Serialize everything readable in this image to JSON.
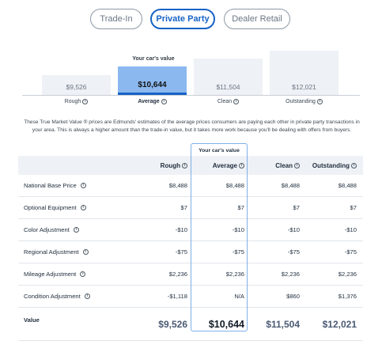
{
  "tabs": [
    "Trade-In",
    "Private Party",
    "Dealer Retail"
  ],
  "active_tab": "Private Party",
  "your_value_label": "Your car's value",
  "chart": {
    "conditions": [
      "Rough",
      "Average",
      "Clean",
      "Outstanding"
    ],
    "prices": [
      "$9,526",
      "$10,644",
      "$11,504",
      "$12,021"
    ],
    "values": [
      9526,
      10644,
      11504,
      12021
    ],
    "selected": "Average"
  },
  "disclaimer": "These True Market Value ® prices are Edmunds' estimates of the average prices consumers are paying each other in private party transactions in your area. This is always a higher amount than the trade-in value, but it takes more work because you'll be dealing with offers from buyers.",
  "table": {
    "headers": [
      "Rough",
      "Average",
      "Clean",
      "Outstanding"
    ],
    "rows": [
      {
        "label": "National Base Price",
        "values": [
          "$8,488",
          "$8,488",
          "$8,488",
          "$8,488"
        ]
      },
      {
        "label": "Optional Equipment",
        "values": [
          "$7",
          "$7",
          "$7",
          "$7"
        ]
      },
      {
        "label": "Color Adjustment",
        "values": [
          "-$10",
          "-$10",
          "-$10",
          "-$10"
        ]
      },
      {
        "label": "Regional Adjustment",
        "values": [
          "-$75",
          "-$75",
          "-$75",
          "-$75"
        ]
      },
      {
        "label": "Mileage Adjustment",
        "values": [
          "$2,236",
          "$2,236",
          "$2,236",
          "$2,236"
        ]
      },
      {
        "label": "Condition Adjustment",
        "values": [
          "-$1,118",
          "N/A",
          "$860",
          "$1,376"
        ]
      }
    ],
    "value_row": {
      "label": "Value",
      "values": [
        "$9,526",
        "$10,644",
        "$11,504",
        "$12,021"
      ]
    }
  },
  "colors": {
    "accent": "#1763c6",
    "selected_bar": "#8bb8ef",
    "bar": "#eef1f5",
    "header_bg": "#eef1f5"
  },
  "icons": {
    "info": "info-circle-icon"
  }
}
